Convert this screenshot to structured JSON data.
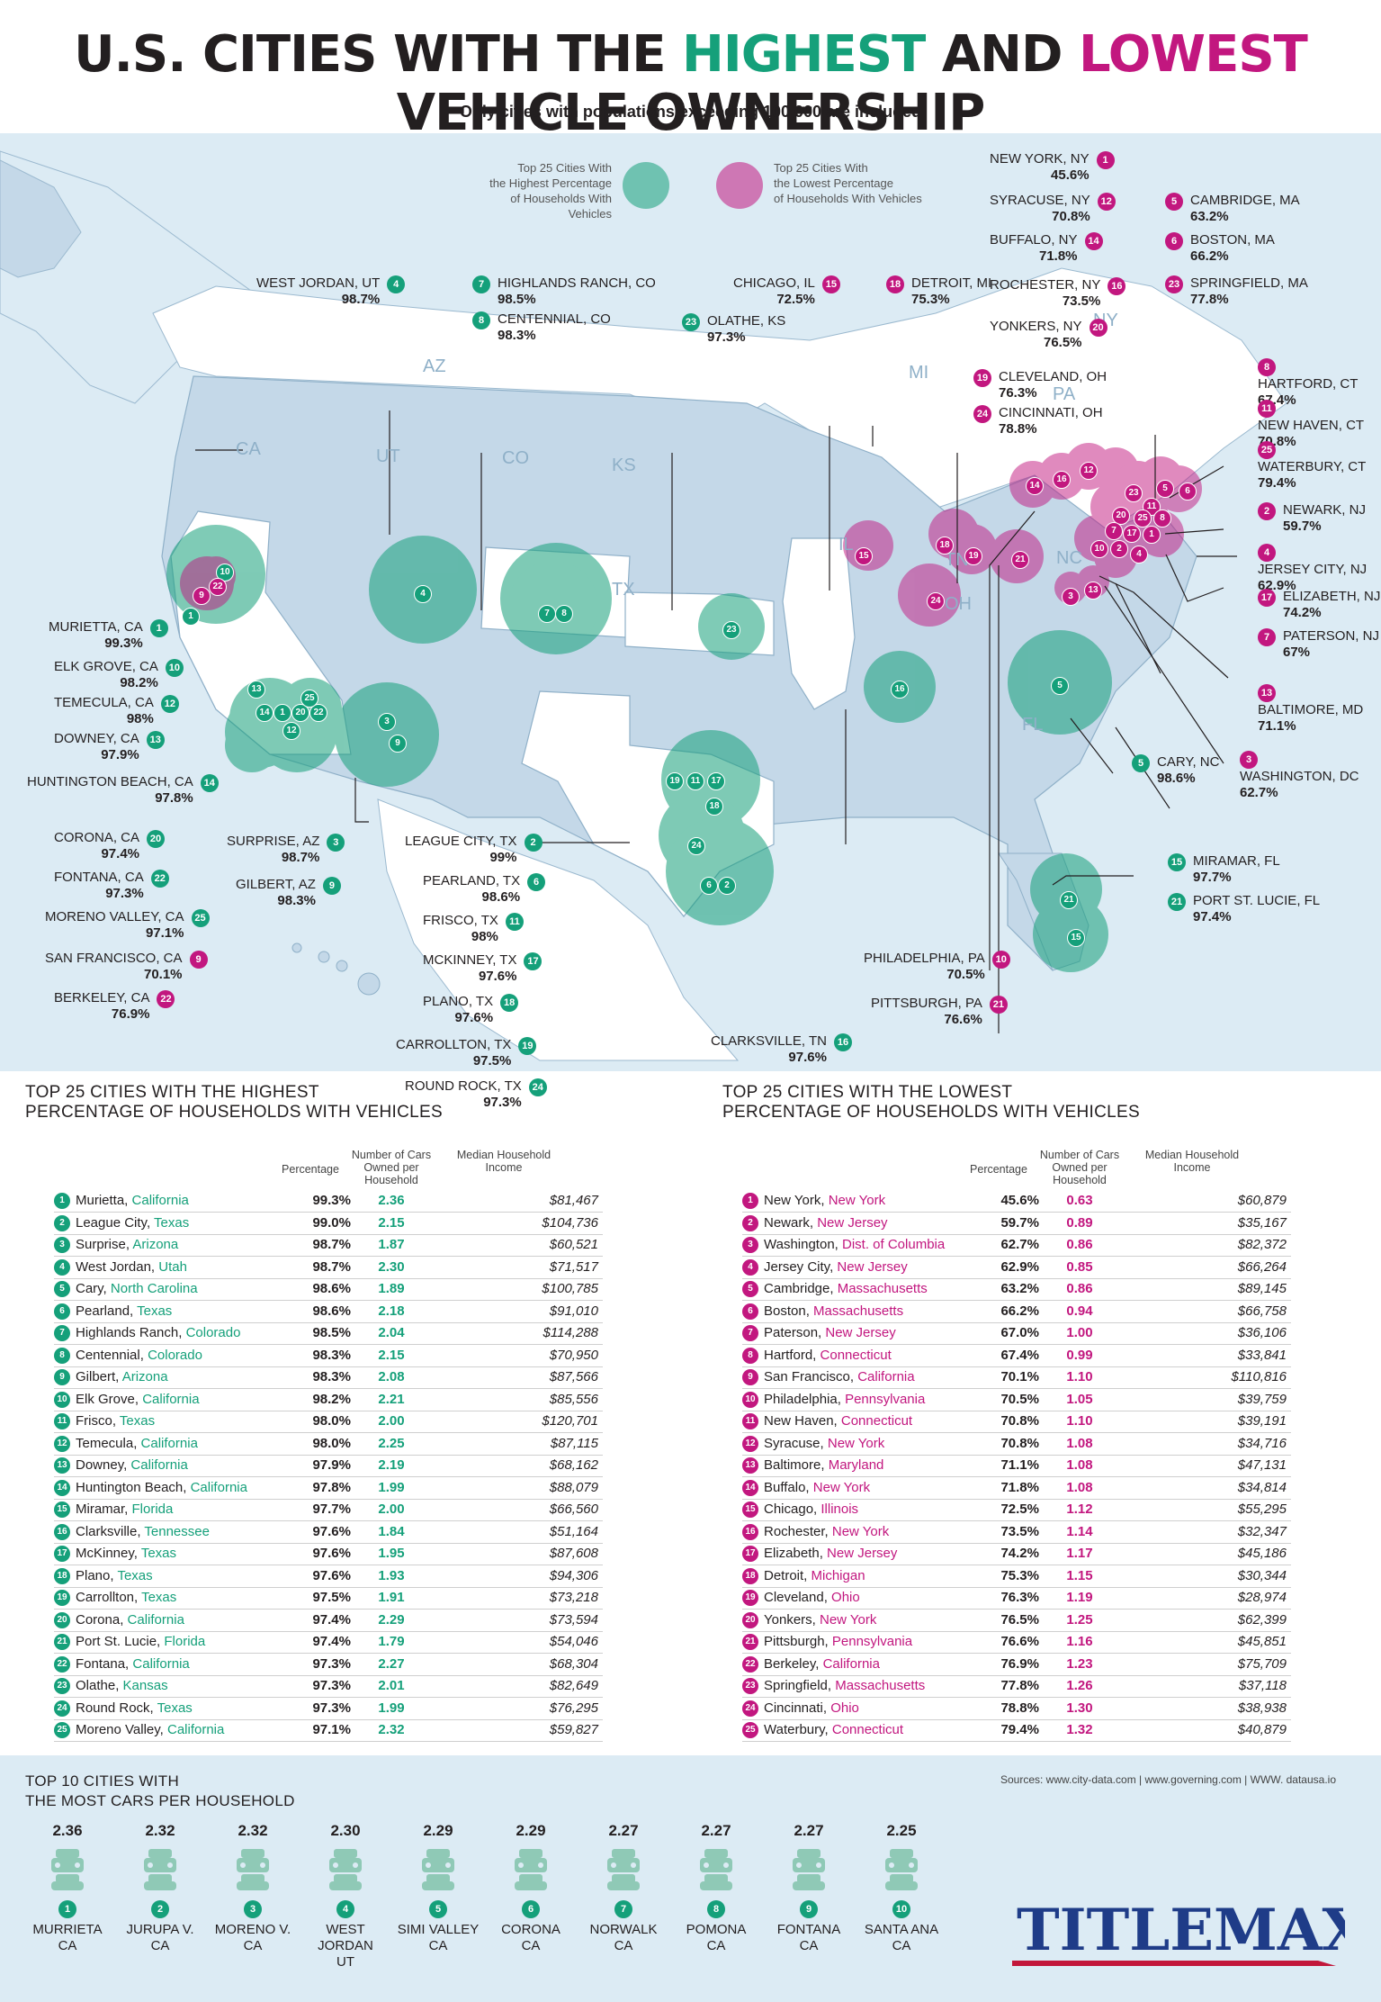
{
  "title": {
    "pre": "U.S. CITIES WITH THE ",
    "hi": "HIGHEST",
    "mid": " AND ",
    "lo": "LOWEST",
    "post": " VEHICLE OWNERSHIP"
  },
  "subtitle": "Only cities with populations exceeding 100,000 are included",
  "colors": {
    "green": "#15a07a",
    "magenta": "#c2177f",
    "panel": "#dcebf4",
    "land": "#c4d8e8",
    "white_land": "#ffffff"
  },
  "legend": {
    "highest": "Top 25 Cities With\nthe Highest Percentage\nof Households With Vehicles",
    "lowest": "Top 25 Cities With\nthe Lowest Percentage\nof Households With Vehicles"
  },
  "state_labels": [
    "CA",
    "UT",
    "CO",
    "KS",
    "AZ",
    "TX",
    "IL",
    "MI",
    "OH",
    "PA",
    "NY",
    "TN",
    "NC",
    "FL"
  ],
  "map_labels": [
    {
      "n": "1",
      "city": "MURIETTA, CA",
      "pct": "99.3%",
      "t": "g"
    },
    {
      "n": "10",
      "city": "ELK GROVE, CA",
      "pct": "98.2%",
      "t": "g"
    },
    {
      "n": "12",
      "city": "TEMECULA, CA",
      "pct": "98%",
      "t": "g"
    },
    {
      "n": "13",
      "city": "DOWNEY, CA",
      "pct": "97.9%",
      "t": "g"
    },
    {
      "n": "14",
      "city": "HUNTINGTON BEACH, CA",
      "pct": "97.8%",
      "t": "g"
    },
    {
      "n": "20",
      "city": "CORONA, CA",
      "pct": "97.4%",
      "t": "g"
    },
    {
      "n": "22",
      "city": "FONTANA, CA",
      "pct": "97.3%",
      "t": "g"
    },
    {
      "n": "25",
      "city": "MORENO VALLEY, CA",
      "pct": "97.1%",
      "t": "g"
    },
    {
      "n": "9",
      "city": "SAN FRANCISCO, CA",
      "pct": "70.1%",
      "t": "m"
    },
    {
      "n": "22",
      "city": "BERKELEY, CA",
      "pct": "76.9%",
      "t": "m"
    },
    {
      "n": "3",
      "city": "SURPRISE, AZ",
      "pct": "98.7%",
      "t": "g"
    },
    {
      "n": "9",
      "city": "GILBERT, AZ",
      "pct": "98.3%",
      "t": "g"
    },
    {
      "n": "4",
      "city": "WEST JORDAN, UT",
      "pct": "98.7%",
      "t": "g"
    },
    {
      "n": "7",
      "city": "HIGHLANDS RANCH, CO",
      "pct": "98.5%",
      "t": "g"
    },
    {
      "n": "8",
      "city": "CENTENNIAL, CO",
      "pct": "98.3%",
      "t": "g"
    },
    {
      "n": "23",
      "city": "OLATHE, KS",
      "pct": "97.3%",
      "t": "g"
    },
    {
      "n": "2",
      "city": "LEAGUE CITY, TX",
      "pct": "99%",
      "t": "g"
    },
    {
      "n": "6",
      "city": "PEARLAND, TX",
      "pct": "98.6%",
      "t": "g"
    },
    {
      "n": "11",
      "city": "FRISCO, TX",
      "pct": "98%",
      "t": "g"
    },
    {
      "n": "17",
      "city": "MCKINNEY, TX",
      "pct": "97.6%",
      "t": "g"
    },
    {
      "n": "18",
      "city": "PLANO, TX",
      "pct": "97.6%",
      "t": "g"
    },
    {
      "n": "19",
      "city": "CARROLLTON, TX",
      "pct": "97.5%",
      "t": "g"
    },
    {
      "n": "24",
      "city": "ROUND ROCK, TX",
      "pct": "97.3%",
      "t": "g"
    },
    {
      "n": "16",
      "city": "CLARKSVILLE, TN",
      "pct": "97.6%",
      "t": "g"
    },
    {
      "n": "15",
      "city": "CHICAGO, IL",
      "pct": "72.5%",
      "t": "m"
    },
    {
      "n": "18",
      "city": "DETROIT, MI",
      "pct": "75.3%",
      "t": "m"
    },
    {
      "n": "19",
      "city": "CLEVELAND, OH",
      "pct": "76.3%",
      "t": "m"
    },
    {
      "n": "24",
      "city": "CINCINNATI, OH",
      "pct": "78.8%",
      "t": "m"
    },
    {
      "n": "1",
      "city": "NEW YORK, NY",
      "pct": "45.6%",
      "t": "m"
    },
    {
      "n": "12",
      "city": "SYRACUSE, NY",
      "pct": "70.8%",
      "t": "m"
    },
    {
      "n": "14",
      "city": "BUFFALO, NY",
      "pct": "71.8%",
      "t": "m"
    },
    {
      "n": "16",
      "city": "ROCHESTER, NY",
      "pct": "73.5%",
      "t": "m"
    },
    {
      "n": "20",
      "city": "YONKERS, NY",
      "pct": "76.5%",
      "t": "m"
    },
    {
      "n": "5",
      "city": "CAMBRIDGE, MA",
      "pct": "63.2%",
      "t": "m"
    },
    {
      "n": "6",
      "city": "BOSTON, MA",
      "pct": "66.2%",
      "t": "m"
    },
    {
      "n": "23",
      "city": "SPRINGFIELD, MA",
      "pct": "77.8%",
      "t": "m"
    },
    {
      "n": "8",
      "city": "HARTFORD, CT",
      "pct": "67.4%",
      "t": "m"
    },
    {
      "n": "11",
      "city": "NEW HAVEN, CT",
      "pct": "70.8%",
      "t": "m"
    },
    {
      "n": "25",
      "city": "WATERBURY, CT",
      "pct": "79.4%",
      "t": "m"
    },
    {
      "n": "2",
      "city": "NEWARK, NJ",
      "pct": "59.7%",
      "t": "m"
    },
    {
      "n": "4",
      "city": "JERSEY CITY, NJ",
      "pct": "62.9%",
      "t": "m"
    },
    {
      "n": "17",
      "city": "ELIZABETH, NJ",
      "pct": "74.2%",
      "t": "m"
    },
    {
      "n": "7",
      "city": "PATERSON, NJ",
      "pct": "67%",
      "t": "m"
    },
    {
      "n": "13",
      "city": "BALTIMORE, MD",
      "pct": "71.1%",
      "t": "m"
    },
    {
      "n": "3",
      "city": "WASHINGTON, DC",
      "pct": "62.7%",
      "t": "m"
    },
    {
      "n": "5",
      "city": "CARY, NC",
      "pct": "98.6%",
      "t": "g"
    },
    {
      "n": "15",
      "city": "MIRAMAR, FL",
      "pct": "97.7%",
      "t": "g"
    },
    {
      "n": "21",
      "city": "PORT ST. LUCIE, FL",
      "pct": "97.4%",
      "t": "g"
    },
    {
      "n": "10",
      "city": "PHILADELPHIA, PA",
      "pct": "70.5%",
      "t": "m"
    },
    {
      "n": "21",
      "city": "PITTSBURGH, PA",
      "pct": "76.6%",
      "t": "m"
    }
  ],
  "high_table": {
    "title": "TOP 25 CITIES WITH THE HIGHEST\nPERCENTAGE OF HOUSEHOLDS WITH VEHICLES",
    "headers": [
      "Percentage",
      "Number of Cars\nOwned per Household",
      "Median Household\nIncome"
    ],
    "rows": [
      {
        "n": "1",
        "city": "Murietta",
        "state": "California",
        "pct": "99.3%",
        "cars": "2.36",
        "inc": "$81,467"
      },
      {
        "n": "2",
        "city": "League City",
        "state": "Texas",
        "pct": "99.0%",
        "cars": "2.15",
        "inc": "$104,736"
      },
      {
        "n": "3",
        "city": "Surprise",
        "state": "Arizona",
        "pct": "98.7%",
        "cars": "1.87",
        "inc": "$60,521"
      },
      {
        "n": "4",
        "city": "West Jordan",
        "state": "Utah",
        "pct": "98.7%",
        "cars": "2.30",
        "inc": "$71,517"
      },
      {
        "n": "5",
        "city": "Cary",
        "state": "North Carolina",
        "pct": "98.6%",
        "cars": "1.89",
        "inc": "$100,785"
      },
      {
        "n": "6",
        "city": "Pearland",
        "state": "Texas",
        "pct": "98.6%",
        "cars": "2.18",
        "inc": "$91,010"
      },
      {
        "n": "7",
        "city": "Highlands Ranch",
        "state": "Colorado",
        "pct": "98.5%",
        "cars": "2.04",
        "inc": "$114,288"
      },
      {
        "n": "8",
        "city": "Centennial",
        "state": "Colorado",
        "pct": "98.3%",
        "cars": "2.15",
        "inc": "$70,950"
      },
      {
        "n": "9",
        "city": "Gilbert",
        "state": "Arizona",
        "pct": "98.3%",
        "cars": "2.08",
        "inc": "$87,566"
      },
      {
        "n": "10",
        "city": "Elk Grove",
        "state": "California",
        "pct": "98.2%",
        "cars": "2.21",
        "inc": "$85,556"
      },
      {
        "n": "11",
        "city": "Frisco",
        "state": "Texas",
        "pct": "98.0%",
        "cars": "2.00",
        "inc": "$120,701"
      },
      {
        "n": "12",
        "city": "Temecula",
        "state": "California",
        "pct": "98.0%",
        "cars": "2.25",
        "inc": "$87,115"
      },
      {
        "n": "13",
        "city": "Downey",
        "state": "California",
        "pct": "97.9%",
        "cars": "2.19",
        "inc": "$68,162"
      },
      {
        "n": "14",
        "city": "Huntington Beach",
        "state": "California",
        "pct": "97.8%",
        "cars": "1.99",
        "inc": "$88,079"
      },
      {
        "n": "15",
        "city": "Miramar",
        "state": "Florida",
        "pct": "97.7%",
        "cars": "2.00",
        "inc": "$66,560"
      },
      {
        "n": "16",
        "city": "Clarksville",
        "state": "Tennessee",
        "pct": "97.6%",
        "cars": "1.84",
        "inc": "$51,164"
      },
      {
        "n": "17",
        "city": "McKinney",
        "state": "Texas",
        "pct": "97.6%",
        "cars": "1.95",
        "inc": "$87,608"
      },
      {
        "n": "18",
        "city": "Plano",
        "state": "Texas",
        "pct": "97.6%",
        "cars": "1.93",
        "inc": "$94,306"
      },
      {
        "n": "19",
        "city": "Carrollton",
        "state": "Texas",
        "pct": "97.5%",
        "cars": "1.91",
        "inc": "$73,218"
      },
      {
        "n": "20",
        "city": "Corona",
        "state": "California",
        "pct": "97.4%",
        "cars": "2.29",
        "inc": "$73,594"
      },
      {
        "n": "21",
        "city": "Port St. Lucie",
        "state": "Florida",
        "pct": "97.4%",
        "cars": "1.79",
        "inc": "$54,046"
      },
      {
        "n": "22",
        "city": "Fontana",
        "state": "California",
        "pct": "97.3%",
        "cars": "2.27",
        "inc": "$68,304"
      },
      {
        "n": "23",
        "city": "Olathe",
        "state": "Kansas",
        "pct": "97.3%",
        "cars": "2.01",
        "inc": "$82,649"
      },
      {
        "n": "24",
        "city": "Round Rock",
        "state": "Texas",
        "pct": "97.3%",
        "cars": "1.99",
        "inc": "$76,295"
      },
      {
        "n": "25",
        "city": "Moreno Valley",
        "state": "California",
        "pct": "97.1%",
        "cars": "2.32",
        "inc": "$59,827"
      }
    ]
  },
  "low_table": {
    "title": "TOP 25 CITIES WITH THE LOWEST\nPERCENTAGE OF HOUSEHOLDS WITH VEHICLES",
    "headers": [
      "Percentage",
      "Number of Cars\nOwned per Household",
      "Median Household\nIncome"
    ],
    "rows": [
      {
        "n": "1",
        "city": "New York",
        "state": "New York",
        "pct": "45.6%",
        "cars": "0.63",
        "inc": "$60,879"
      },
      {
        "n": "2",
        "city": "Newark",
        "state": "New Jersey",
        "pct": "59.7%",
        "cars": "0.89",
        "inc": "$35,167"
      },
      {
        "n": "3",
        "city": "Washington",
        "state": "Dist. of Columbia",
        "pct": "62.7%",
        "cars": "0.86",
        "inc": "$82,372"
      },
      {
        "n": "4",
        "city": "Jersey City",
        "state": "New Jersey",
        "pct": "62.9%",
        "cars": "0.85",
        "inc": "$66,264"
      },
      {
        "n": "5",
        "city": "Cambridge",
        "state": "Massachusetts",
        "pct": "63.2%",
        "cars": "0.86",
        "inc": "$89,145"
      },
      {
        "n": "6",
        "city": "Boston",
        "state": "Massachusetts",
        "pct": "66.2%",
        "cars": "0.94",
        "inc": "$66,758"
      },
      {
        "n": "7",
        "city": "Paterson",
        "state": "New Jersey",
        "pct": "67.0%",
        "cars": "1.00",
        "inc": "$36,106"
      },
      {
        "n": "8",
        "city": "Hartford",
        "state": "Connecticut",
        "pct": "67.4%",
        "cars": "0.99",
        "inc": "$33,841"
      },
      {
        "n": "9",
        "city": "San Francisco",
        "state": "California",
        "pct": "70.1%",
        "cars": "1.10",
        "inc": "$110,816"
      },
      {
        "n": "10",
        "city": "Philadelphia",
        "state": "Pennsylvania",
        "pct": "70.5%",
        "cars": "1.05",
        "inc": "$39,759"
      },
      {
        "n": "11",
        "city": "New Haven",
        "state": "Connecticut",
        "pct": "70.8%",
        "cars": "1.10",
        "inc": "$39,191"
      },
      {
        "n": "12",
        "city": "Syracuse",
        "state": "New York",
        "pct": "70.8%",
        "cars": "1.08",
        "inc": "$34,716"
      },
      {
        "n": "13",
        "city": "Baltimore",
        "state": "Maryland",
        "pct": "71.1%",
        "cars": "1.08",
        "inc": "$47,131"
      },
      {
        "n": "14",
        "city": "Buffalo",
        "state": "New York",
        "pct": "71.8%",
        "cars": "1.08",
        "inc": "$34,814"
      },
      {
        "n": "15",
        "city": "Chicago",
        "state": "Illinois",
        "pct": "72.5%",
        "cars": "1.12",
        "inc": "$55,295"
      },
      {
        "n": "16",
        "city": "Rochester",
        "state": "New York",
        "pct": "73.5%",
        "cars": "1.14",
        "inc": "$32,347"
      },
      {
        "n": "17",
        "city": "Elizabeth",
        "state": "New Jersey",
        "pct": "74.2%",
        "cars": "1.17",
        "inc": "$45,186"
      },
      {
        "n": "18",
        "city": "Detroit",
        "state": "Michigan",
        "pct": "75.3%",
        "cars": "1.15",
        "inc": "$30,344"
      },
      {
        "n": "19",
        "city": "Cleveland",
        "state": "Ohio",
        "pct": "76.3%",
        "cars": "1.19",
        "inc": "$28,974"
      },
      {
        "n": "20",
        "city": "Yonkers",
        "state": "New York",
        "pct": "76.5%",
        "cars": "1.25",
        "inc": "$62,399"
      },
      {
        "n": "21",
        "city": "Pittsburgh",
        "state": "Pennsylvania",
        "pct": "76.6%",
        "cars": "1.16",
        "inc": "$45,851"
      },
      {
        "n": "22",
        "city": "Berkeley",
        "state": "California",
        "pct": "76.9%",
        "cars": "1.23",
        "inc": "$75,709"
      },
      {
        "n": "23",
        "city": "Springfield",
        "state": "Massachusetts",
        "pct": "77.8%",
        "cars": "1.26",
        "inc": "$37,118"
      },
      {
        "n": "24",
        "city": "Cincinnati",
        "state": "Ohio",
        "pct": "78.8%",
        "cars": "1.30",
        "inc": "$38,938"
      },
      {
        "n": "25",
        "city": "Waterbury",
        "state": "Connecticut",
        "pct": "79.4%",
        "cars": "1.32",
        "inc": "$40,879"
      }
    ]
  },
  "top10": {
    "title": "TOP 10 CITIES WITH\nTHE MOST CARS PER HOUSEHOLD",
    "sources": "Sources: www.city-data.com | www.governing.com | WWW. datausa.io",
    "items": [
      {
        "n": "1",
        "v": "2.36",
        "city": "MURRIETA",
        "st": "CA"
      },
      {
        "n": "2",
        "v": "2.32",
        "city": "JURUPA V.",
        "st": "CA"
      },
      {
        "n": "3",
        "v": "2.32",
        "city": "MORENO V.",
        "st": "CA"
      },
      {
        "n": "4",
        "v": "2.30",
        "city": "WEST JORDAN",
        "st": "UT"
      },
      {
        "n": "5",
        "v": "2.29",
        "city": "SIMI VALLEY",
        "st": "CA"
      },
      {
        "n": "6",
        "v": "2.29",
        "city": "CORONA",
        "st": "CA"
      },
      {
        "n": "7",
        "v": "2.27",
        "city": "NORWALK",
        "st": "CA"
      },
      {
        "n": "8",
        "v": "2.27",
        "city": "POMONA",
        "st": "CA"
      },
      {
        "n": "9",
        "v": "2.27",
        "city": "FONTANA",
        "st": "CA"
      },
      {
        "n": "10",
        "v": "2.25",
        "city": "SANTA ANA",
        "st": "CA"
      }
    ]
  },
  "logo": "TITLEMAX",
  "chart_data": [
    {
      "type": "table",
      "title": "TOP 25 CITIES WITH THE HIGHEST PERCENTAGE OF HOUSEHOLDS WITH VEHICLES",
      "columns": [
        "City",
        "Percentage",
        "Number of Cars Owned per Household",
        "Median Household Income"
      ],
      "ref": "high_table.rows"
    },
    {
      "type": "table",
      "title": "TOP 25 CITIES WITH THE LOWEST PERCENTAGE OF HOUSEHOLDS WITH VEHICLES",
      "columns": [
        "City",
        "Percentage",
        "Number of Cars Owned per Household",
        "Median Household Income"
      ],
      "ref": "low_table.rows"
    },
    {
      "type": "bar",
      "title": "TOP 10 CITIES WITH THE MOST CARS PER HOUSEHOLD",
      "categories": [
        "MURRIETA CA",
        "JURUPA V. CA",
        "MORENO V. CA",
        "WEST JORDAN UT",
        "SIMI VALLEY CA",
        "CORONA CA",
        "NORWALK CA",
        "POMONA CA",
        "FONTANA CA",
        "SANTA ANA CA"
      ],
      "values": [
        2.36,
        2.32,
        2.32,
        2.3,
        2.29,
        2.29,
        2.27,
        2.27,
        2.27,
        2.25
      ]
    }
  ]
}
